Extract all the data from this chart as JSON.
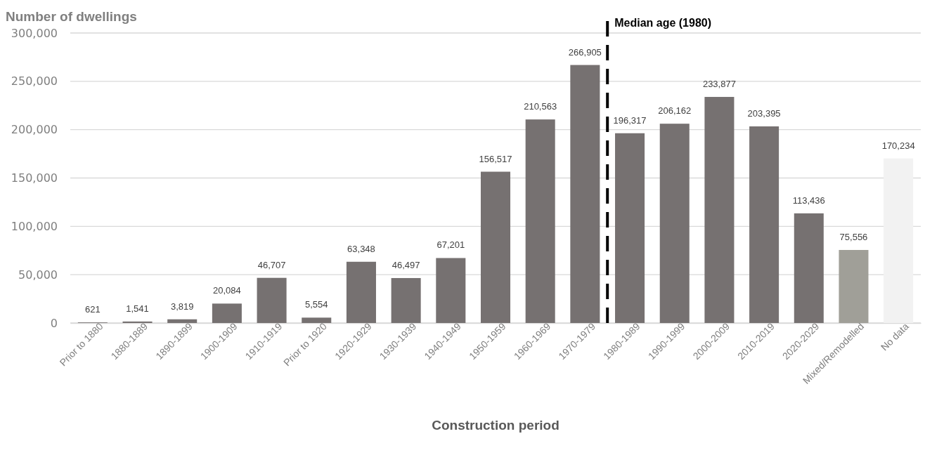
{
  "chart_data": {
    "type": "bar",
    "ylabel": "Number of dwellings",
    "xlabel": "Construction period",
    "categories": [
      "Prior to 1880",
      "1880-1889",
      "1890-1899",
      "1900-1909",
      "1910-1919",
      "Prior to 1920",
      "1920-1929",
      "1930-1939",
      "1940-1949",
      "1950-1959",
      "1960-1969",
      "1970-1979",
      "1980-1989",
      "1990-1999",
      "2000-2009",
      "2010-2019",
      "2020-2029",
      "Mixed/Remodelled",
      "No data"
    ],
    "values": [
      621,
      1541,
      3819,
      20084,
      46707,
      5554,
      63348,
      46497,
      67201,
      156517,
      210563,
      266905,
      196317,
      206162,
      233877,
      203395,
      113436,
      75556,
      170234
    ],
    "colors": [
      "#767171",
      "#767171",
      "#767171",
      "#767171",
      "#767171",
      "#767171",
      "#767171",
      "#767171",
      "#767171",
      "#767171",
      "#767171",
      "#767171",
      "#767171",
      "#767171",
      "#767171",
      "#767171",
      "#767171",
      "#a09f98",
      "#f2f2f2"
    ],
    "ylim": [
      0,
      300000
    ],
    "yticks": [
      {
        "value": 0,
        "label": "0"
      },
      {
        "value": 50000,
        "label": "50,000"
      },
      {
        "value": 100000,
        "label": "100,000"
      },
      {
        "value": 150000,
        "label": "150,000"
      },
      {
        "value": 200000,
        "label": "200,000"
      },
      {
        "value": 250000,
        "label": "250,000"
      },
      {
        "value": 300000,
        "label": "300,000"
      }
    ],
    "value_labels": [
      "621",
      "1,541",
      "3,819",
      "20,084",
      "46,707",
      "5,554",
      "63,348",
      "46,497",
      "67,201",
      "156,517",
      "210,563",
      "266,905",
      "196,317",
      "206,162",
      "233,877",
      "203,395",
      "113,436",
      "75,556",
      "170,234"
    ],
    "grid": "y",
    "ref_lines": [
      {
        "axis": "x",
        "value": "1980-1989",
        "label": "Median age (1980)",
        "color": "#000000",
        "line_style": "dashed"
      }
    ]
  }
}
